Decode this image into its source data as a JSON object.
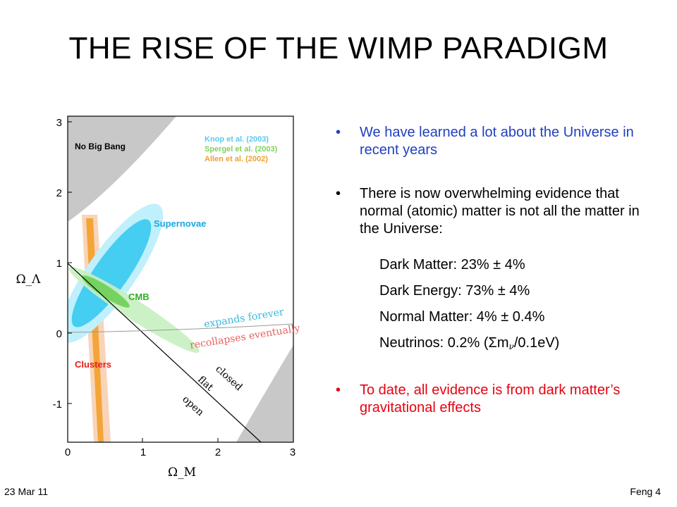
{
  "slide": {
    "title": "THE RISE OF THE WIMP PARADIGM",
    "footer_left": "23 Mar 11",
    "footer_right": "Feng 4"
  },
  "plot": {
    "xlabel": "Ω_M",
    "ylabel": "Ω_Λ",
    "x_ticks": [
      "0",
      "1",
      "2",
      "3"
    ],
    "y_ticks": [
      "3",
      "2",
      "1",
      "0",
      "-1"
    ],
    "xlim": [
      0,
      3
    ],
    "ylim": [
      -1.5,
      3.0
    ],
    "region_labels": {
      "no_big_bang": "No Big Bang",
      "supernovae": "Supernovae",
      "cmb": "CMB",
      "clusters": "Clusters",
      "expands": "expands forever",
      "recollapses": "recollapses eventually",
      "closed": "closed",
      "flat": "flat",
      "open": "open"
    },
    "legend": [
      {
        "text": "Knop et al. (2003)",
        "color": "#5bc8f0"
      },
      {
        "text": "Spergel et al. (2003)",
        "color": "#7dd35a"
      },
      {
        "text": "Allen et al. (2002)",
        "color": "#f0a030"
      }
    ],
    "colors": {
      "supernovae": "#2fc7f0",
      "cmb": "#6ecf55",
      "clusters": "#f2a02a",
      "clusters_core": "#d98a00",
      "clusters_label": "#e81c1c",
      "supernovae_label": "#18a8e0",
      "cmb_label": "#2fb020",
      "expands_label": "#36b8d8",
      "recollapses_label": "#e86060",
      "shade": "#c8c8c8"
    }
  },
  "bullets": {
    "b1": "We have learned a lot about the Universe in recent years",
    "b2": "There is now overwhelming evidence that normal (atomic) matter is not all the matter in the Universe:",
    "stats": {
      "dark_matter": "Dark Matter: 23% ± 4%",
      "dark_energy": "Dark Energy: 73% ± 4%",
      "normal_matter": "Normal Matter: 4% ± 0.4%",
      "neutrinos_prefix": "Neutrinos: 0.2% (Σm",
      "neutrinos_sub": "ν",
      "neutrinos_suffix": "/0.1eV)"
    },
    "b3": "To date, all evidence is from dark matter’s gravitational effects",
    "marker": "•"
  }
}
